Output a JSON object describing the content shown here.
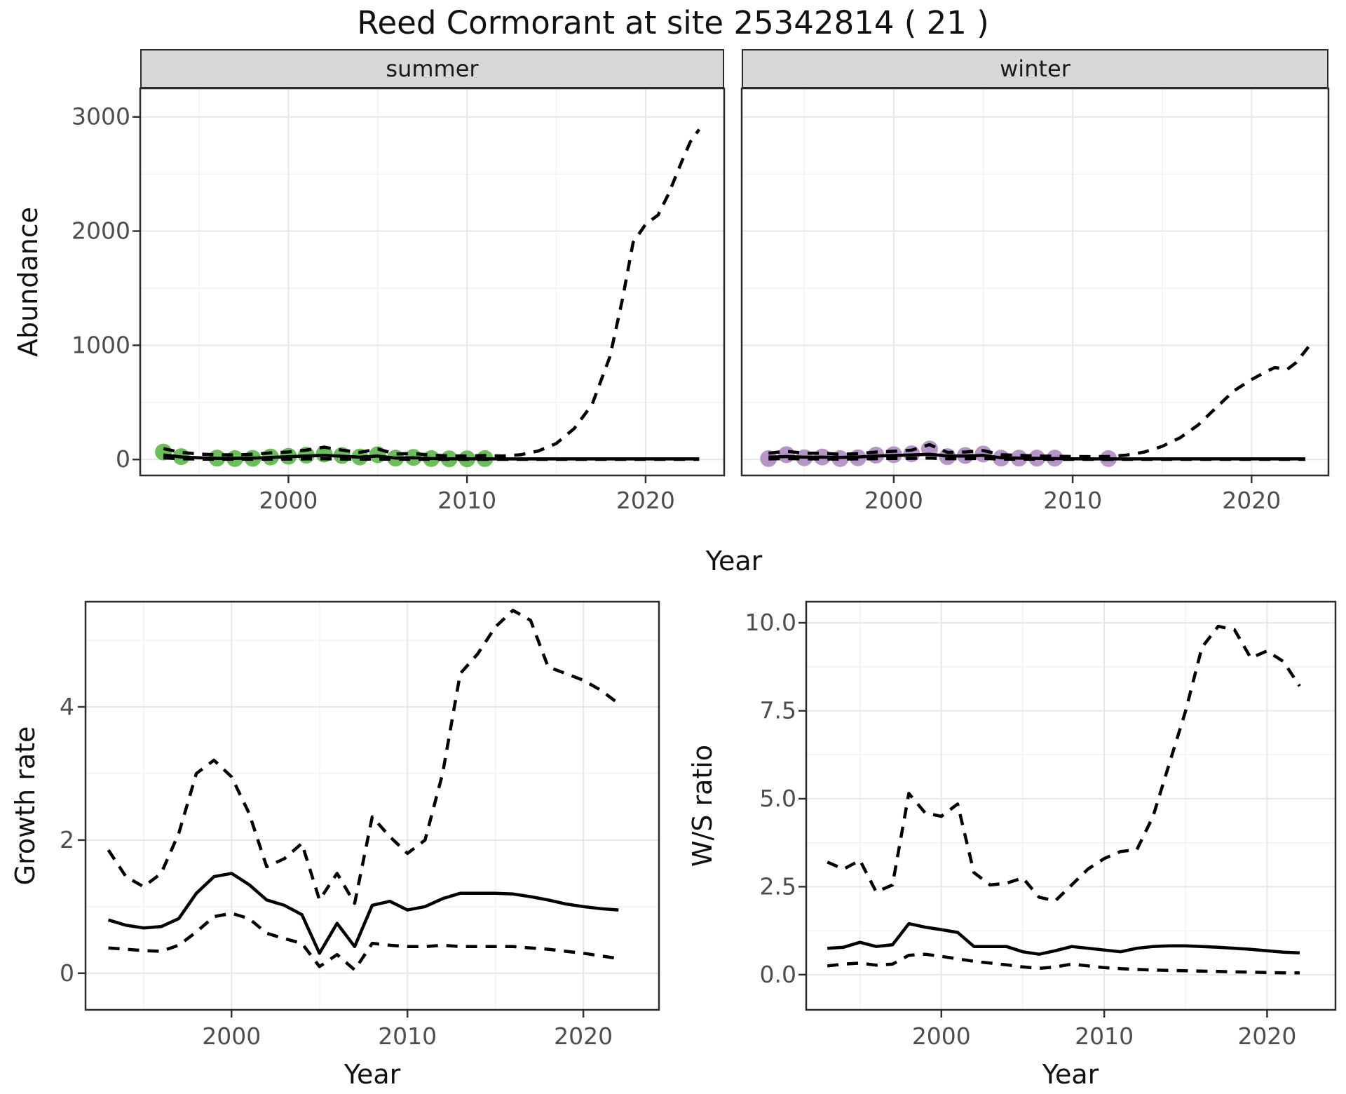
{
  "title": "Reed Cormorant at site 25342814 ( 21 )",
  "colors": {
    "summer_points": "#6abf5a",
    "winter_points": "#b795c8",
    "model_lines": "#000000",
    "strip_fill": "#d7d7d7",
    "panel_border": "#2b2b2b",
    "grid_major": "#e7e7e7",
    "grid_minor": "#f1f1f1",
    "tick_label": "#4d4d4d"
  },
  "chart_data": [
    {
      "type": "line",
      "facet_label": "summer",
      "xlabel": "Year",
      "ylabel": "Abundance",
      "xlim": [
        1991.7,
        2024.4
      ],
      "ylim": [
        -140,
        3250
      ],
      "xticks": [
        2000,
        2010,
        2020
      ],
      "xticks_minor": [
        1995,
        2005,
        2015
      ],
      "yticks": [
        0,
        1000,
        2000,
        3000
      ],
      "ytick_labels": [
        "0",
        "1000",
        "2000",
        "3000"
      ],
      "yticks_minor": [
        500,
        1500,
        2500
      ],
      "series": [
        {
          "name": "observed",
          "style": "points",
          "color": "#6abf5a",
          "x": [
            1993,
            1994,
            1996,
            1997,
            1998,
            1999,
            2000,
            2001,
            2002,
            2003,
            2004,
            2005,
            2006,
            2007,
            2008,
            2009,
            2010,
            2011
          ],
          "y": [
            65,
            25,
            12,
            8,
            10,
            22,
            28,
            38,
            48,
            35,
            22,
            42,
            12,
            18,
            8,
            6,
            6,
            8
          ]
        },
        {
          "name": "upper_ci",
          "style": "dashed",
          "x": [
            1993,
            1994,
            1995,
            1996,
            1997,
            1998,
            1999,
            2000,
            2001,
            2002,
            2003,
            2004,
            2005,
            2006,
            2007,
            2008,
            2009,
            2010,
            2011,
            2012,
            2013,
            2014,
            2015,
            2016,
            2017,
            2018,
            2018.7,
            2019.3,
            2020,
            2020.7,
            2021.3,
            2022,
            2022.5,
            2023
          ],
          "y": [
            95,
            62,
            48,
            42,
            40,
            46,
            58,
            66,
            82,
            108,
            82,
            62,
            92,
            48,
            52,
            38,
            32,
            30,
            35,
            30,
            42,
            75,
            140,
            270,
            480,
            900,
            1400,
            1900,
            2060,
            2140,
            2330,
            2600,
            2780,
            2890
          ]
        },
        {
          "name": "median",
          "style": "solid",
          "x": [
            1993,
            1994,
            1995,
            1996,
            1997,
            1998,
            1999,
            2000,
            2001,
            2002,
            2003,
            2004,
            2005,
            2006,
            2007,
            2008,
            2009,
            2010,
            2011,
            2012,
            2013,
            2014,
            2015,
            2016,
            2017,
            2018,
            2019,
            2020,
            2021,
            2022,
            2023
          ],
          "y": [
            40,
            22,
            15,
            10,
            10,
            12,
            18,
            24,
            30,
            36,
            28,
            20,
            30,
            12,
            15,
            8,
            6,
            6,
            6,
            5,
            5,
            5,
            5,
            5,
            5,
            5,
            5,
            5,
            5,
            5,
            5
          ]
        },
        {
          "name": "lower_ci",
          "style": "dashed",
          "x": [
            1993,
            1994,
            1995,
            1996,
            1997,
            1998,
            1999,
            2000,
            2001,
            2002,
            2003,
            2004,
            2005,
            2006,
            2007,
            2008,
            2009,
            2010,
            2011,
            2012,
            2013,
            2014,
            2015,
            2016,
            2017,
            2018,
            2019,
            2020,
            2021,
            2022,
            2023
          ],
          "y": [
            14,
            6,
            3,
            2,
            2,
            2,
            3,
            4,
            5,
            6,
            4,
            3,
            4,
            2,
            2,
            1,
            1,
            1,
            1,
            1,
            1,
            1,
            1,
            1,
            1,
            1,
            1,
            1,
            1,
            1,
            1
          ]
        }
      ]
    },
    {
      "type": "line",
      "facet_label": "winter",
      "xlabel": "Year",
      "ylabel": "Abundance",
      "xlim": [
        1991.5,
        2024.3
      ],
      "ylim": [
        -140,
        3250
      ],
      "xticks": [
        2000,
        2010,
        2020
      ],
      "xticks_minor": [
        1995,
        2005,
        2015
      ],
      "yticks": [],
      "ytick_labels": [],
      "yticks_minor": [
        500,
        1500,
        2500
      ],
      "yticks_grid": [
        0,
        1000,
        2000,
        3000
      ],
      "series": [
        {
          "name": "observed",
          "style": "points",
          "color": "#b795c8",
          "x": [
            1993,
            1994,
            1995,
            1996,
            1997,
            1998,
            1999,
            2000,
            2001,
            2002,
            2003,
            2004,
            2005,
            2006,
            2007,
            2008,
            2009,
            2012
          ],
          "y": [
            8,
            42,
            15,
            22,
            8,
            15,
            38,
            42,
            50,
            92,
            25,
            35,
            48,
            12,
            12,
            12,
            12,
            8
          ]
        },
        {
          "name": "upper_ci",
          "style": "dashed",
          "x": [
            1993,
            1994,
            1995,
            1996,
            1997,
            1998,
            1999,
            2000,
            2001,
            2002,
            2003,
            2004,
            2005,
            2006,
            2007,
            2008,
            2009,
            2010,
            2011,
            2012,
            2013,
            2014,
            2015,
            2016,
            2017,
            2018,
            2019,
            2020,
            2020.7,
            2021.3,
            2022,
            2022.5,
            2023.2
          ],
          "y": [
            55,
            72,
            55,
            55,
            45,
            52,
            65,
            72,
            82,
            130,
            62,
            66,
            78,
            42,
            36,
            30,
            28,
            26,
            25,
            26,
            38,
            65,
            115,
            190,
            300,
            450,
            600,
            700,
            760,
            805,
            790,
            850,
            990
          ]
        },
        {
          "name": "median",
          "style": "solid",
          "x": [
            1993,
            1994,
            1995,
            1996,
            1997,
            1998,
            1999,
            2000,
            2001,
            2002,
            2003,
            2004,
            2005,
            2006,
            2007,
            2008,
            2009,
            2010,
            2011,
            2012,
            2013,
            2014,
            2015,
            2016,
            2017,
            2018,
            2019,
            2020,
            2021,
            2022,
            2023
          ],
          "y": [
            20,
            26,
            20,
            20,
            18,
            22,
            30,
            35,
            40,
            46,
            30,
            30,
            36,
            15,
            12,
            10,
            8,
            6,
            5,
            5,
            5,
            5,
            5,
            5,
            5,
            5,
            5,
            5,
            5,
            5,
            5
          ]
        },
        {
          "name": "lower_ci",
          "style": "dashed",
          "x": [
            1993,
            1994,
            1995,
            1996,
            1997,
            1998,
            1999,
            2000,
            2001,
            2002,
            2003,
            2004,
            2005,
            2006,
            2007,
            2008,
            2009,
            2010,
            2011,
            2012,
            2013,
            2014,
            2015,
            2016,
            2017,
            2018,
            2019,
            2020,
            2021,
            2022,
            2023
          ],
          "y": [
            5,
            8,
            5,
            5,
            4,
            5,
            7,
            9,
            10,
            12,
            7,
            7,
            9,
            3,
            3,
            2,
            2,
            1,
            1,
            1,
            1,
            1,
            1,
            1,
            1,
            1,
            1,
            1,
            1,
            1,
            1
          ]
        }
      ]
    },
    {
      "type": "line",
      "facet_label": "",
      "xlabel": "Year",
      "ylabel": "Growth rate",
      "xlim": [
        1991.7,
        2024.3
      ],
      "ylim": [
        -0.55,
        5.58
      ],
      "xticks": [
        2000,
        2010,
        2020
      ],
      "xticks_minor": [
        1995,
        2005,
        2015
      ],
      "yticks": [
        0,
        2,
        4
      ],
      "ytick_labels": [
        "0",
        "2",
        "4"
      ],
      "yticks_minor": [
        1,
        3,
        5
      ],
      "series": [
        {
          "name": "upper_ci",
          "style": "dashed",
          "x": [
            1993,
            1994,
            1995,
            1996,
            1997,
            1998,
            1999,
            2000,
            2001,
            2002,
            2003,
            2004,
            2005,
            2006,
            2007,
            2008,
            2009,
            2010,
            2011,
            2012,
            2013,
            2014,
            2015,
            2016,
            2017,
            2018,
            2019,
            2020,
            2021,
            2022
          ],
          "y": [
            1.85,
            1.45,
            1.3,
            1.5,
            2.1,
            3.0,
            3.2,
            2.95,
            2.4,
            1.6,
            1.72,
            1.95,
            1.1,
            1.5,
            1.05,
            2.35,
            2.05,
            1.8,
            2.0,
            3.0,
            4.5,
            4.8,
            5.2,
            5.45,
            5.3,
            4.6,
            4.5,
            4.4,
            4.25,
            4.05
          ]
        },
        {
          "name": "median",
          "style": "solid",
          "x": [
            1993,
            1994,
            1995,
            1996,
            1997,
            1998,
            1999,
            2000,
            2001,
            2002,
            2003,
            2004,
            2005,
            2006,
            2007,
            2008,
            2009,
            2010,
            2011,
            2012,
            2013,
            2014,
            2015,
            2016,
            2017,
            2018,
            2019,
            2020,
            2021,
            2022
          ],
          "y": [
            0.8,
            0.72,
            0.68,
            0.7,
            0.82,
            1.2,
            1.45,
            1.5,
            1.33,
            1.1,
            1.02,
            0.88,
            0.3,
            0.75,
            0.4,
            1.02,
            1.08,
            0.95,
            1.0,
            1.12,
            1.2,
            1.2,
            1.2,
            1.19,
            1.15,
            1.1,
            1.04,
            1.0,
            0.97,
            0.95
          ]
        },
        {
          "name": "lower_ci",
          "style": "dashed",
          "x": [
            1993,
            1994,
            1995,
            1996,
            1997,
            1998,
            1999,
            2000,
            2001,
            2002,
            2003,
            2004,
            2005,
            2006,
            2007,
            2008,
            2009,
            2010,
            2011,
            2012,
            2013,
            2014,
            2015,
            2016,
            2017,
            2018,
            2019,
            2020,
            2021,
            2022
          ],
          "y": [
            0.38,
            0.36,
            0.34,
            0.33,
            0.42,
            0.62,
            0.85,
            0.9,
            0.82,
            0.6,
            0.52,
            0.45,
            0.1,
            0.28,
            0.05,
            0.45,
            0.42,
            0.4,
            0.4,
            0.42,
            0.4,
            0.4,
            0.4,
            0.4,
            0.38,
            0.36,
            0.33,
            0.3,
            0.26,
            0.22
          ]
        }
      ]
    },
    {
      "type": "line",
      "facet_label": "",
      "xlabel": "Year",
      "ylabel": "W/S ratio",
      "xlim": [
        1991.7,
        2024.2
      ],
      "ylim": [
        -1.0,
        10.6
      ],
      "xticks": [
        2000,
        2010,
        2020
      ],
      "xticks_minor": [
        1995,
        2005,
        2015
      ],
      "yticks": [
        0,
        2.5,
        5,
        7.5,
        10
      ],
      "ytick_labels": [
        "0.0",
        "2.5",
        "5.0",
        "7.5",
        "10.0"
      ],
      "yticks_minor": [
        1.25,
        3.75,
        6.25,
        8.75
      ],
      "series": [
        {
          "name": "upper_ci",
          "style": "dashed",
          "x": [
            1993,
            1994,
            1995,
            1996,
            1997,
            1998,
            1999,
            2000,
            2001,
            2002,
            2003,
            2004,
            2005,
            2006,
            2007,
            2008,
            2009,
            2010,
            2011,
            2012,
            2013,
            2014,
            2015,
            2016,
            2017,
            2018,
            2019,
            2020,
            2021,
            2022
          ],
          "y": [
            3.2,
            3.0,
            3.25,
            2.35,
            2.55,
            5.15,
            4.6,
            4.5,
            4.85,
            2.9,
            2.55,
            2.6,
            2.75,
            2.2,
            2.1,
            2.55,
            3.0,
            3.3,
            3.5,
            3.55,
            4.5,
            6.0,
            7.5,
            9.3,
            9.9,
            9.8,
            9.0,
            9.2,
            8.9,
            8.2
          ]
        },
        {
          "name": "median",
          "style": "solid",
          "x": [
            1993,
            1994,
            1995,
            1996,
            1997,
            1998,
            1999,
            2000,
            2001,
            2002,
            2003,
            2004,
            2005,
            2006,
            2007,
            2008,
            2009,
            2010,
            2011,
            2012,
            2013,
            2014,
            2015,
            2016,
            2017,
            2018,
            2019,
            2020,
            2021,
            2022
          ],
          "y": [
            0.75,
            0.78,
            0.92,
            0.8,
            0.85,
            1.45,
            1.35,
            1.28,
            1.2,
            0.8,
            0.8,
            0.8,
            0.65,
            0.58,
            0.68,
            0.8,
            0.75,
            0.7,
            0.65,
            0.75,
            0.8,
            0.82,
            0.82,
            0.8,
            0.78,
            0.75,
            0.72,
            0.68,
            0.64,
            0.62
          ]
        },
        {
          "name": "lower_ci",
          "style": "dashed",
          "x": [
            1993,
            1994,
            1995,
            1996,
            1997,
            1998,
            1999,
            2000,
            2001,
            2002,
            2003,
            2004,
            2005,
            2006,
            2007,
            2008,
            2009,
            2010,
            2011,
            2012,
            2013,
            2014,
            2015,
            2016,
            2017,
            2018,
            2019,
            2020,
            2021,
            2022
          ],
          "y": [
            0.25,
            0.3,
            0.33,
            0.27,
            0.3,
            0.55,
            0.58,
            0.52,
            0.45,
            0.38,
            0.33,
            0.28,
            0.22,
            0.18,
            0.22,
            0.3,
            0.25,
            0.2,
            0.17,
            0.15,
            0.13,
            0.12,
            0.11,
            0.1,
            0.09,
            0.08,
            0.07,
            0.06,
            0.05,
            0.05
          ]
        }
      ]
    }
  ]
}
